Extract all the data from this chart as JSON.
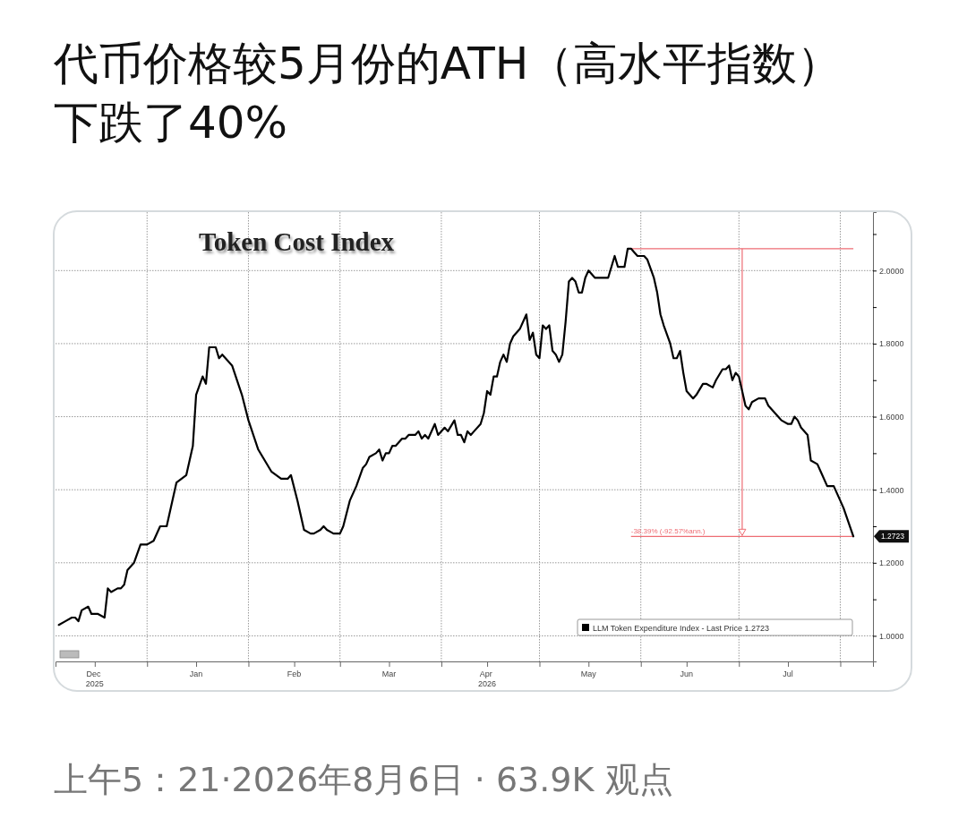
{
  "chart_data": {
    "type": "line",
    "title": "代币价格较5月份的ATH（高水平指数）下跌了40%",
    "subtitle": "Token Cost Index",
    "x": [
      "2025-12-05",
      "2025-12-07",
      "2025-12-09",
      "2025-12-10",
      "2025-12-11",
      "2025-12-12",
      "2025-12-14",
      "2025-12-15",
      "2025-12-17",
      "2025-12-19",
      "2025-12-20",
      "2025-12-21",
      "2025-12-23",
      "2025-12-24",
      "2025-12-25",
      "2025-12-26",
      "2025-12-28",
      "2025-12-30",
      "2026-01-01",
      "2026-01-03",
      "2026-01-05",
      "2026-01-07",
      "2026-01-09",
      "2026-01-10",
      "2026-01-13",
      "2026-01-15",
      "2026-01-16",
      "2026-01-18",
      "2026-01-19",
      "2026-01-20",
      "2026-01-22",
      "2026-01-23",
      "2026-01-24",
      "2026-01-27",
      "2026-01-30",
      "2026-02-01",
      "2026-02-04",
      "2026-02-06",
      "2026-02-08",
      "2026-02-11",
      "2026-02-13",
      "2026-02-14",
      "2026-02-16",
      "2026-02-18",
      "2026-02-20",
      "2026-02-21",
      "2026-02-23",
      "2026-02-24",
      "2026-02-25",
      "2026-02-27",
      "2026-03-01",
      "2026-03-02",
      "2026-03-04",
      "2026-03-06",
      "2026-03-08",
      "2026-03-09",
      "2026-03-10",
      "2026-03-12",
      "2026-03-13",
      "2026-03-14",
      "2026-03-15",
      "2026-03-16",
      "2026-03-17",
      "2026-03-18",
      "2026-03-20",
      "2026-03-21",
      "2026-03-22",
      "2026-03-24",
      "2026-03-25",
      "2026-03-26",
      "2026-03-27",
      "2026-03-28",
      "2026-03-30",
      "2026-03-31",
      "2026-04-02",
      "2026-04-03",
      "2026-04-05",
      "2026-04-06",
      "2026-04-07",
      "2026-04-08",
      "2026-04-09",
      "2026-04-10",
      "2026-04-11",
      "2026-04-13",
      "2026-04-14",
      "2026-04-15",
      "2026-04-16",
      "2026-04-17",
      "2026-04-18",
      "2026-04-19",
      "2026-04-20",
      "2026-04-21",
      "2026-04-22",
      "2026-04-23",
      "2026-04-25",
      "2026-04-27",
      "2026-04-28",
      "2026-04-29",
      "2026-04-30",
      "2026-05-01",
      "2026-05-02",
      "2026-05-03",
      "2026-05-04",
      "2026-05-05",
      "2026-05-06",
      "2026-05-07",
      "2026-05-08",
      "2026-05-09",
      "2026-05-10",
      "2026-05-11",
      "2026-05-12",
      "2026-05-13",
      "2026-05-14",
      "2026-05-15",
      "2026-05-16",
      "2026-05-18",
      "2026-05-21",
      "2026-05-22",
      "2026-05-24",
      "2026-05-25",
      "2026-05-27",
      "2026-05-28",
      "2026-05-29",
      "2026-05-30",
      "2026-05-31",
      "2026-06-01",
      "2026-06-02",
      "2026-06-03",
      "2026-06-05",
      "2026-06-06",
      "2026-06-07",
      "2026-06-08",
      "2026-06-10",
      "2026-06-11",
      "2026-06-12",
      "2026-06-13",
      "2026-06-14",
      "2026-06-15",
      "2026-06-17",
      "2026-06-18",
      "2026-06-20",
      "2026-06-21",
      "2026-06-23",
      "2026-06-24",
      "2026-06-26",
      "2026-06-27",
      "2026-06-28",
      "2026-06-29",
      "2026-06-30",
      "2026-07-01",
      "2026-07-02",
      "2026-07-03",
      "2026-07-04",
      "2026-07-05",
      "2026-07-07",
      "2026-07-09",
      "2026-07-10",
      "2026-07-13",
      "2026-07-14",
      "2026-07-16",
      "2026-07-17",
      "2026-07-18",
      "2026-07-19",
      "2026-07-20",
      "2026-07-22",
      "2026-07-23",
      "2026-07-25",
      "2026-07-26",
      "2026-07-28",
      "2026-07-30",
      "2026-08-01",
      "2026-08-02",
      "2026-08-05"
    ],
    "series": [
      {
        "name": "LLM Token Expenditure Index - Last Price 1.2723",
        "color": "#000000",
        "values": [
          1.03,
          1.04,
          1.05,
          1.05,
          1.04,
          1.07,
          1.08,
          1.06,
          1.06,
          1.05,
          1.13,
          1.12,
          1.13,
          1.13,
          1.14,
          1.18,
          1.2,
          1.25,
          1.25,
          1.26,
          1.3,
          1.3,
          1.38,
          1.42,
          1.44,
          1.52,
          1.66,
          1.71,
          1.69,
          1.79,
          1.79,
          1.76,
          1.77,
          1.74,
          1.66,
          1.59,
          1.51,
          1.48,
          1.45,
          1.43,
          1.43,
          1.44,
          1.37,
          1.29,
          1.28,
          1.28,
          1.29,
          1.3,
          1.29,
          1.28,
          1.28,
          1.3,
          1.37,
          1.41,
          1.46,
          1.47,
          1.49,
          1.5,
          1.51,
          1.48,
          1.5,
          1.5,
          1.52,
          1.52,
          1.54,
          1.54,
          1.55,
          1.55,
          1.56,
          1.54,
          1.55,
          1.54,
          1.58,
          1.55,
          1.57,
          1.56,
          1.59,
          1.55,
          1.55,
          1.53,
          1.56,
          1.55,
          1.56,
          1.58,
          1.61,
          1.67,
          1.66,
          1.71,
          1.71,
          1.75,
          1.77,
          1.75,
          1.8,
          1.82,
          1.84,
          1.88,
          1.81,
          1.83,
          1.77,
          1.76,
          1.85,
          1.84,
          1.85,
          1.78,
          1.77,
          1.75,
          1.77,
          1.86,
          1.97,
          1.98,
          1.97,
          1.94,
          1.94,
          1.98,
          2.0,
          1.98,
          1.98,
          1.98,
          2.04,
          2.01,
          2.01,
          2.06,
          2.06,
          2.05,
          2.04,
          2.04,
          2.04,
          2.03,
          1.98,
          1.94,
          1.88,
          1.85,
          1.8,
          1.76,
          1.76,
          1.78,
          1.72,
          1.67,
          1.65,
          1.66,
          1.69,
          1.69,
          1.68,
          1.7,
          1.73,
          1.73,
          1.74,
          1.7,
          1.72,
          1.71,
          1.67,
          1.63,
          1.62,
          1.64,
          1.65,
          1.65,
          1.63,
          1.6,
          1.59,
          1.58,
          1.58,
          1.6,
          1.59,
          1.57,
          1.55,
          1.48,
          1.47,
          1.45,
          1.41,
          1.41,
          1.37,
          1.35,
          1.2723
        ]
      }
    ],
    "xlim": [
      "2025-12-04",
      "2026-08-11"
    ],
    "xticks": [
      {
        "value": "2025-12-16",
        "label": "Dec 2025"
      },
      {
        "value": "2026-01-01",
        "label": null
      },
      {
        "value": "2026-01-16",
        "label": "Jan"
      },
      {
        "value": "2026-02-01",
        "label": null
      },
      {
        "value": "2026-02-15",
        "label": "Feb"
      },
      {
        "value": "2026-03-01",
        "label": null
      },
      {
        "value": "2026-03-16",
        "label": "Mar"
      },
      {
        "value": "2026-04-01",
        "label": null
      },
      {
        "value": "2026-04-15",
        "label": "Apr 2026"
      },
      {
        "value": "2026-05-01",
        "label": null
      },
      {
        "value": "2026-05-16",
        "label": "May"
      },
      {
        "value": "2026-06-01",
        "label": null
      },
      {
        "value": "2026-06-15",
        "label": "Jun"
      },
      {
        "value": "2026-07-01",
        "label": null
      },
      {
        "value": "2026-07-16",
        "label": "Jul"
      },
      {
        "value": "2026-08-01",
        "label": null
      }
    ],
    "ylim": [
      0.93,
      2.16
    ],
    "yticks": [
      {
        "value": 1.0,
        "label": "1.0000"
      },
      {
        "value": 1.1,
        "label": null
      },
      {
        "value": 1.2,
        "label": "1.2000"
      },
      {
        "value": 1.3,
        "label": null
      },
      {
        "value": 1.4,
        "label": "1.4000"
      },
      {
        "value": 1.5,
        "label": null
      },
      {
        "value": 1.6,
        "label": "1.6000"
      },
      {
        "value": 1.7,
        "label": null
      },
      {
        "value": 1.8,
        "label": "1.8000"
      },
      {
        "value": 1.9,
        "label": null
      },
      {
        "value": 2.0,
        "label": "2.0000"
      },
      {
        "value": 2.1,
        "label": null
      }
    ],
    "grid": true,
    "legend": "bottom right",
    "ref_lines": [
      {
        "axis": "y",
        "value": 2.06,
        "color": "#ee6d74"
      },
      {
        "axis": "y",
        "value": 1.2723,
        "color": "#ee6d74"
      }
    ],
    "annotations": [
      {
        "text": "-38.39% (-92.57%ann.)",
        "x": "2026-05-29",
        "y": 1.2723
      },
      "1.2723",
      "上午5：21·2026年8月6日 · 63.9K 观点"
    ]
  }
}
